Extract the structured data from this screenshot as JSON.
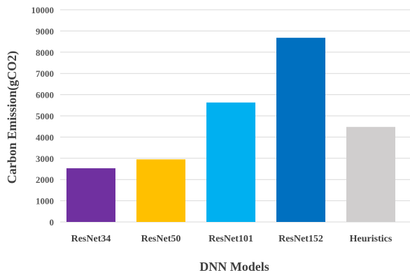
{
  "chart_data": {
    "type": "bar",
    "categories": [
      "ResNet34",
      "ResNet50",
      "ResNet101",
      "ResNet152",
      "Heuristics"
    ],
    "values": [
      2530,
      2950,
      5630,
      8680,
      4480
    ],
    "colors": [
      "#7030a0",
      "#ffc000",
      "#00b0f0",
      "#0070c0",
      "#d0cece"
    ],
    "xlabel": "DNN Models",
    "ylabel": "Carbon Emission(gCO2)",
    "ylim": [
      0,
      10000
    ],
    "yticks": [
      0,
      1000,
      2000,
      3000,
      4000,
      5000,
      6000,
      7000,
      8000,
      9000,
      10000
    ],
    "grid": true,
    "legend": "none"
  }
}
